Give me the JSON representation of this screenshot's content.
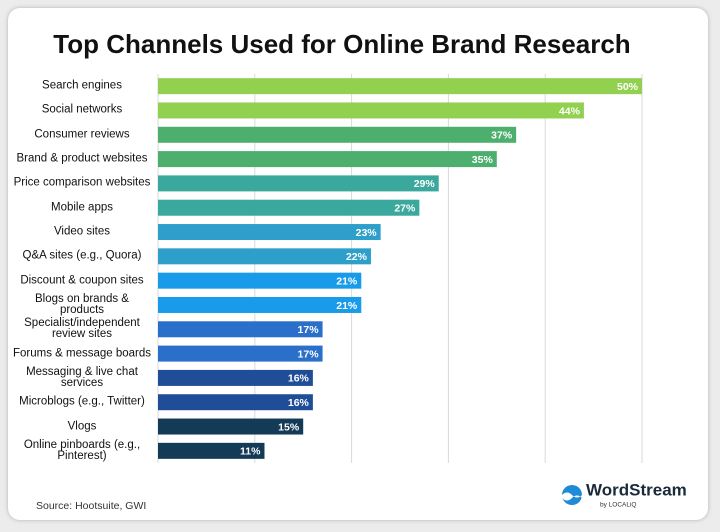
{
  "chart_data": {
    "type": "hbar",
    "title": "Top Channels Used for Online Brand Research",
    "categories": [
      "Search engines",
      "Social networks",
      "Consumer reviews",
      "Brand & product websites",
      "Price comparison websites",
      "Mobile apps",
      "Video sites",
      "Q&A sites (e.g., Quora)",
      "Discount & coupon sites",
      "Blogs on brands & products",
      "Specialist/independent review sites",
      "Forums & message boards",
      "Messaging & live chat services",
      "Microblogs (e.g., Twitter)",
      "Vlogs",
      "Online pinboards (e.g., Pinterest)"
    ],
    "values": [
      50,
      44,
      37,
      35,
      29,
      27,
      23,
      22,
      21,
      21,
      17,
      17,
      16,
      16,
      15,
      11
    ],
    "value_labels": [
      "50%",
      "44%",
      "37%",
      "35%",
      "29%",
      "27%",
      "23%",
      "22%",
      "21%",
      "21%",
      "17%",
      "17%",
      "16%",
      "16%",
      "15%",
      "11%"
    ],
    "colors": [
      "#92d050",
      "#92d050",
      "#4caf6e",
      "#4caf6e",
      "#3aa89c",
      "#3aa89c",
      "#2e9fcb",
      "#2e9fcb",
      "#1a9bea",
      "#1a9bea",
      "#2a70cb",
      "#2a70cb",
      "#1f4d97",
      "#1f4d97",
      "#133a56",
      "#133a56"
    ],
    "xlim": [
      0,
      50
    ],
    "xticks": [
      0,
      10,
      20,
      30,
      40,
      50
    ],
    "grid": true,
    "source": "Source: Hootsuite, GWI",
    "logo_text": "WordStream",
    "logo_subtext": "by LOCALiQ"
  }
}
